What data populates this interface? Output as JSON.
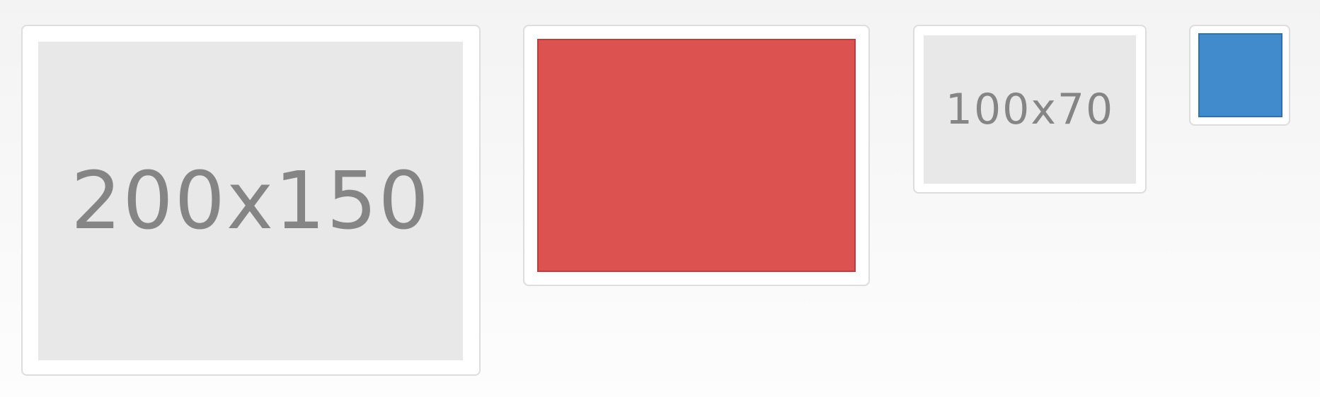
{
  "thumbnails": [
    {
      "label": "200x150",
      "kind": "placeholder"
    },
    {
      "label": "",
      "kind": "color",
      "fill": "#db5250",
      "border": "#c43a38"
    },
    {
      "label": "100x70",
      "kind": "placeholder"
    },
    {
      "label": "",
      "kind": "color",
      "fill": "#418acb",
      "border": "#2f72ad"
    }
  ],
  "colors": {
    "placeholder_bg": "#e8e8e8",
    "placeholder_text": "#858585",
    "thumb_border": "#dddddd",
    "page_bg_top": "#f3f3f3",
    "page_bg_bottom": "#fdfdfd"
  }
}
